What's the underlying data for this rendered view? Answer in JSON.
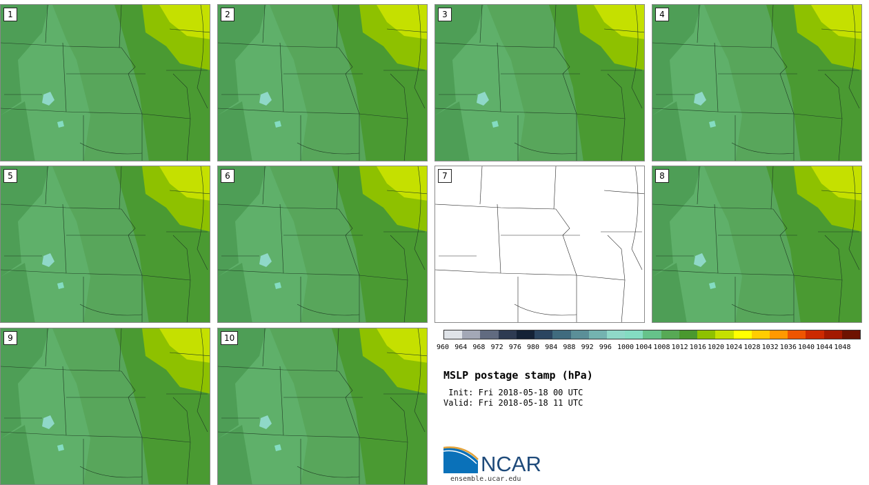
{
  "panels": [
    {
      "label": "1",
      "has_data": true
    },
    {
      "label": "2",
      "has_data": true
    },
    {
      "label": "3",
      "has_data": true
    },
    {
      "label": "4",
      "has_data": true
    },
    {
      "label": "5",
      "has_data": true
    },
    {
      "label": "6",
      "has_data": true
    },
    {
      "label": "7",
      "has_data": false
    },
    {
      "label": "8",
      "has_data": true
    },
    {
      "label": "9",
      "has_data": true
    },
    {
      "label": "10",
      "has_data": true
    }
  ],
  "colorbar": {
    "ticks": [
      "960",
      "964",
      "968",
      "972",
      "976",
      "980",
      "984",
      "988",
      "992",
      "996",
      "1000",
      "1004",
      "1008",
      "1012",
      "1016",
      "1020",
      "1024",
      "1028",
      "1032",
      "1036",
      "1040",
      "1044",
      "1048"
    ],
    "colors": [
      "#dfe3e8",
      "#a3a8b6",
      "#616b80",
      "#2e3b52",
      "#142236",
      "#2b4560",
      "#406b7e",
      "#5b8f98",
      "#74b3b0",
      "#8fd8c8",
      "#84dcc2",
      "#66c28a",
      "#57a955",
      "#4a982f",
      "#8ec100",
      "#c5e000",
      "#ffff00",
      "#ffcc00",
      "#ff9900",
      "#ee5500",
      "#cc2a00",
      "#a31a00",
      "#6e1300"
    ]
  },
  "title": "MSLP postage stamp (hPa)",
  "init": " Init: Fri 2018-05-18 00 UTC",
  "valid": "Valid: Fri 2018-05-18 11 UTC",
  "logo": {
    "text": "NCAR",
    "url": "ensemble.ucar.edu"
  }
}
